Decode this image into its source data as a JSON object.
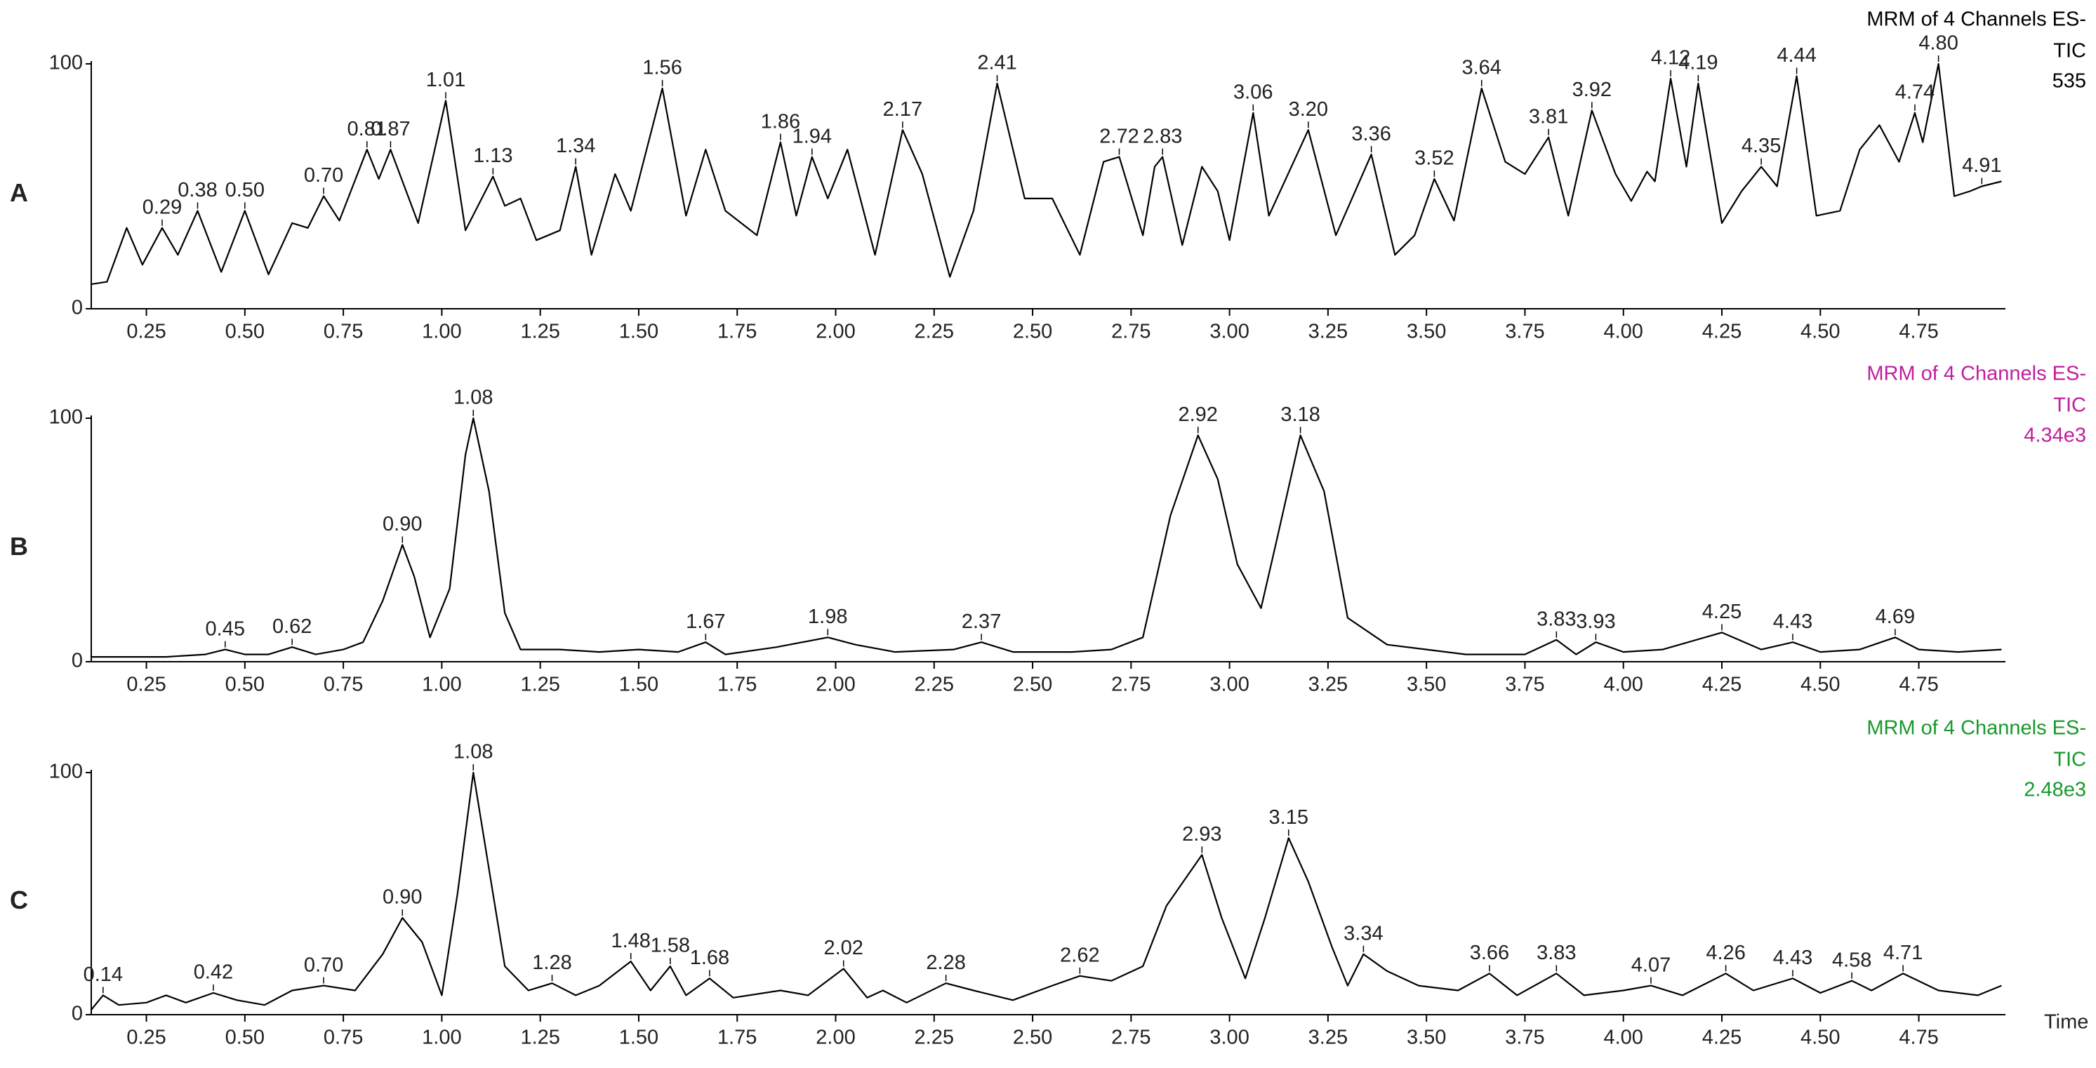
{
  "chart_data": [
    {
      "type": "line",
      "panel": "A",
      "title": "MRM of 4 Channels ES-",
      "subtitle": "TIC",
      "intensity": 535,
      "color": "#000000",
      "x": [
        0.11,
        0.15,
        0.2,
        0.24,
        0.29,
        0.33,
        0.38,
        0.44,
        0.5,
        0.56,
        0.62,
        0.66,
        0.7,
        0.74,
        0.81,
        0.84,
        0.87,
        0.94,
        1.01,
        1.06,
        1.13,
        1.16,
        1.2,
        1.24,
        1.3,
        1.34,
        1.38,
        1.44,
        1.48,
        1.56,
        1.62,
        1.67,
        1.72,
        1.8,
        1.86,
        1.9,
        1.94,
        1.98,
        2.03,
        2.1,
        2.17,
        2.22,
        2.29,
        2.35,
        2.41,
        2.48,
        2.55,
        2.62,
        2.68,
        2.72,
        2.78,
        2.81,
        2.83,
        2.88,
        2.93,
        2.97,
        3.0,
        3.06,
        3.1,
        3.2,
        3.27,
        3.36,
        3.42,
        3.47,
        3.52,
        3.57,
        3.64,
        3.7,
        3.75,
        3.81,
        3.86,
        3.92,
        3.98,
        4.02,
        4.06,
        4.08,
        4.12,
        4.16,
        4.19,
        4.25,
        4.3,
        4.35,
        4.39,
        4.44,
        4.49,
        4.55,
        4.6,
        4.65,
        4.7,
        4.74,
        4.76,
        4.8,
        4.84,
        4.88,
        4.91,
        4.96
      ],
      "series": [
        {
          "color": "#000000",
          "values": [
            10,
            11,
            33,
            18,
            33,
            22,
            40,
            15,
            40,
            14,
            35,
            33,
            46,
            36,
            65,
            53,
            65,
            35,
            85,
            32,
            54,
            42,
            45,
            28,
            32,
            58,
            22,
            55,
            40,
            90,
            38,
            65,
            40,
            30,
            68,
            38,
            62,
            45,
            65,
            22,
            73,
            55,
            13,
            40,
            92,
            45,
            45,
            22,
            60,
            62,
            30,
            58,
            62,
            26,
            58,
            48,
            28,
            80,
            38,
            73,
            30,
            63,
            22,
            30,
            53,
            36,
            90,
            60,
            55,
            70,
            38,
            81,
            55,
            44,
            56,
            52,
            94,
            58,
            92,
            35,
            48,
            58,
            50,
            95,
            38,
            40,
            65,
            75,
            60,
            80,
            68,
            100,
            46,
            48,
            50,
            52
          ]
        }
      ],
      "peaks": {
        "x": [
          0.29,
          0.38,
          0.5,
          0.7,
          0.81,
          0.87,
          1.01,
          1.13,
          1.34,
          1.56,
          1.86,
          1.94,
          2.17,
          2.41,
          2.72,
          2.83,
          3.06,
          3.2,
          3.36,
          3.52,
          3.64,
          3.81,
          3.92,
          4.12,
          4.19,
          4.35,
          4.44,
          4.74,
          4.8,
          4.91
        ],
        "y": [
          33,
          40,
          40,
          46,
          65,
          65,
          85,
          54,
          58,
          90,
          68,
          62,
          73,
          92,
          62,
          62,
          80,
          73,
          63,
          53,
          90,
          70,
          81,
          94,
          92,
          58,
          95,
          80,
          100,
          50
        ],
        "value_labels": [
          "0.29",
          "0.38",
          "0.50",
          "0.70",
          "0.81",
          "0.87",
          "1.01",
          "1.13",
          "1.34",
          "1.56",
          "1.86",
          "1.94",
          "2.17",
          "2.41",
          "2.72",
          "2.83",
          "3.06",
          "3.20",
          "3.36",
          "3.52",
          "3.64",
          "3.81",
          "3.92",
          "4.12",
          "4.19",
          "4.35",
          "4.44",
          "4.74",
          "4.80",
          "4.91"
        ]
      },
      "xlim": [
        0.11,
        4.97
      ],
      "ylim": [
        0,
        100
      ],
      "xticks": [
        0.25,
        {
          "value": 0.5,
          "label": "0.50"
        },
        0.75,
        {
          "value": 1,
          "label": "1.00"
        },
        1.25,
        {
          "value": 1.5,
          "label": "1.50"
        },
        1.75,
        {
          "value": 2,
          "label": "2.00"
        },
        2.25,
        {
          "value": 2.5,
          "label": "2.50"
        },
        2.75,
        {
          "value": 3,
          "label": "3.00"
        },
        3.25,
        {
          "value": 3.5,
          "label": "3.50"
        },
        3.75,
        {
          "value": 4,
          "label": "4.00"
        },
        4.25,
        {
          "value": 4.5,
          "label": "4.50"
        },
        4.75
      ],
      "yticks": [
        0,
        100
      ]
    },
    {
      "type": "line",
      "panel": "B",
      "title": "MRM of 4 Channels ES-",
      "subtitle": "TIC",
      "intensity": {
        "value": 4340,
        "label": "4.34e3"
      },
      "color": "#c01e9c",
      "x": [
        0.11,
        0.3,
        0.4,
        0.45,
        0.5,
        0.56,
        0.62,
        0.68,
        0.75,
        0.8,
        0.85,
        0.9,
        0.93,
        0.97,
        1.02,
        1.06,
        1.08,
        1.12,
        1.16,
        1.2,
        1.3,
        1.4,
        1.5,
        1.6,
        1.67,
        1.72,
        1.85,
        1.98,
        2.05,
        2.15,
        2.3,
        2.37,
        2.45,
        2.6,
        2.7,
        2.78,
        2.85,
        2.92,
        2.97,
        3.02,
        3.08,
        3.12,
        3.18,
        3.24,
        3.3,
        3.4,
        3.5,
        3.6,
        3.75,
        3.83,
        3.88,
        3.93,
        4.0,
        4.1,
        4.25,
        4.35,
        4.43,
        4.5,
        4.6,
        4.69,
        4.75,
        4.85,
        4.96
      ],
      "series": [
        {
          "color": "#000000",
          "values": [
            2,
            2,
            3,
            5,
            3,
            3,
            6,
            3,
            5,
            8,
            25,
            48,
            35,
            10,
            30,
            85,
            100,
            70,
            20,
            5,
            5,
            4,
            5,
            4,
            8,
            3,
            6,
            10,
            7,
            4,
            5,
            8,
            4,
            4,
            5,
            10,
            60,
            93,
            75,
            40,
            22,
            50,
            93,
            70,
            18,
            7,
            5,
            3,
            3,
            9,
            3,
            8,
            4,
            5,
            12,
            5,
            8,
            4,
            5,
            10,
            5,
            4,
            5
          ]
        }
      ],
      "peaks": {
        "x": [
          0.45,
          0.62,
          0.9,
          1.08,
          1.67,
          1.98,
          2.37,
          2.92,
          3.18,
          3.83,
          3.93,
          4.25,
          4.43,
          4.69
        ],
        "y": [
          5,
          6,
          48,
          100,
          8,
          10,
          8,
          93,
          93,
          9,
          8,
          12,
          8,
          10
        ],
        "value_labels": [
          "0.45",
          "0.62",
          "0.90",
          "1.08",
          "1.67",
          "1.98",
          "2.37",
          "2.92",
          "3.18",
          "3.83",
          "3.93",
          "4.25",
          "4.43",
          "4.69"
        ]
      },
      "xlim": [
        0.11,
        4.97
      ],
      "ylim": [
        0,
        100
      ],
      "xticks": [
        0.25,
        {
          "value": 0.5,
          "label": "0.50"
        },
        0.75,
        {
          "value": 1,
          "label": "1.00"
        },
        1.25,
        {
          "value": 1.5,
          "label": "1.50"
        },
        1.75,
        {
          "value": 2,
          "label": "2.00"
        },
        2.25,
        {
          "value": 2.5,
          "label": "2.50"
        },
        2.75,
        {
          "value": 3,
          "label": "3.00"
        },
        3.25,
        {
          "value": 3.5,
          "label": "3.50"
        },
        3.75,
        {
          "value": 4,
          "label": "4.00"
        },
        4.25,
        {
          "value": 4.5,
          "label": "4.50"
        },
        4.75
      ],
      "yticks": [
        0,
        100
      ]
    },
    {
      "type": "line",
      "panel": "C",
      "title": "MRM of 4 Channels ES-",
      "subtitle": "TIC",
      "intensity": {
        "value": 2480,
        "label": "2.48e3"
      },
      "color": "#18982c",
      "xlabel": "Time",
      "x": [
        0.11,
        0.14,
        0.18,
        0.25,
        0.3,
        0.35,
        0.42,
        0.48,
        0.55,
        0.62,
        0.7,
        0.78,
        0.85,
        0.9,
        0.95,
        1.0,
        1.04,
        1.08,
        1.12,
        1.16,
        1.22,
        1.28,
        1.34,
        1.4,
        1.48,
        1.53,
        1.58,
        1.62,
        1.68,
        1.74,
        1.86,
        1.93,
        2.02,
        2.08,
        2.12,
        2.18,
        2.28,
        2.35,
        2.45,
        2.55,
        2.62,
        2.7,
        2.78,
        2.84,
        2.93,
        2.98,
        3.04,
        3.09,
        3.15,
        3.2,
        3.26,
        3.3,
        3.34,
        3.4,
        3.48,
        3.58,
        3.66,
        3.73,
        3.83,
        3.9,
        4.0,
        4.07,
        4.15,
        4.26,
        4.33,
        4.43,
        4.5,
        4.58,
        4.63,
        4.71,
        4.8,
        4.9,
        4.96
      ],
      "series": [
        {
          "color": "#000000",
          "values": [
            2,
            8,
            4,
            5,
            8,
            5,
            9,
            6,
            4,
            10,
            12,
            10,
            25,
            40,
            30,
            8,
            50,
            100,
            60,
            20,
            10,
            13,
            8,
            12,
            22,
            10,
            20,
            8,
            15,
            7,
            10,
            8,
            19,
            7,
            10,
            5,
            13,
            10,
            6,
            12,
            16,
            14,
            20,
            45,
            66,
            40,
            15,
            40,
            73,
            55,
            28,
            12,
            25,
            18,
            12,
            10,
            17,
            8,
            17,
            8,
            10,
            12,
            8,
            17,
            10,
            15,
            9,
            14,
            10,
            17,
            10,
            8,
            12
          ]
        }
      ],
      "peaks": {
        "x": [
          0.14,
          0.42,
          0.7,
          0.9,
          1.08,
          1.28,
          1.48,
          1.58,
          1.68,
          2.02,
          2.28,
          2.62,
          2.93,
          3.15,
          3.34,
          3.66,
          3.83,
          4.07,
          4.26,
          4.43,
          4.58,
          4.71
        ],
        "y": [
          8,
          9,
          12,
          40,
          100,
          13,
          22,
          20,
          15,
          19,
          13,
          16,
          66,
          73,
          25,
          17,
          17,
          12,
          17,
          15,
          14,
          17
        ],
        "value_labels": [
          "0.14",
          "0.42",
          "0.70",
          "0.90",
          "1.08",
          "1.28",
          "1.48",
          "1.58",
          "1.68",
          "2.02",
          "2.28",
          "2.62",
          "2.93",
          "3.15",
          "3.34",
          "3.66",
          "3.83",
          "4.07",
          "4.26",
          "4.43",
          "4.58",
          "4.71"
        ]
      },
      "xlim": [
        0.11,
        4.97
      ],
      "ylim": [
        0,
        100
      ],
      "xticks": [
        0.25,
        {
          "value": 0.5,
          "label": "0.50"
        },
        0.75,
        {
          "value": 1,
          "label": "1.00"
        },
        1.25,
        {
          "value": 1.5,
          "label": "1.50"
        },
        1.75,
        {
          "value": 2,
          "label": "2.00"
        },
        2.25,
        {
          "value": 2.5,
          "label": "2.50"
        },
        2.75,
        {
          "value": 3,
          "label": "3.00"
        },
        3.25,
        {
          "value": 3.5,
          "label": "3.50"
        },
        3.75,
        {
          "value": 4,
          "label": "4.00"
        },
        4.25,
        {
          "value": 4.5,
          "label": "4.50"
        },
        4.75
      ],
      "yticks": [
        0,
        100
      ]
    }
  ]
}
